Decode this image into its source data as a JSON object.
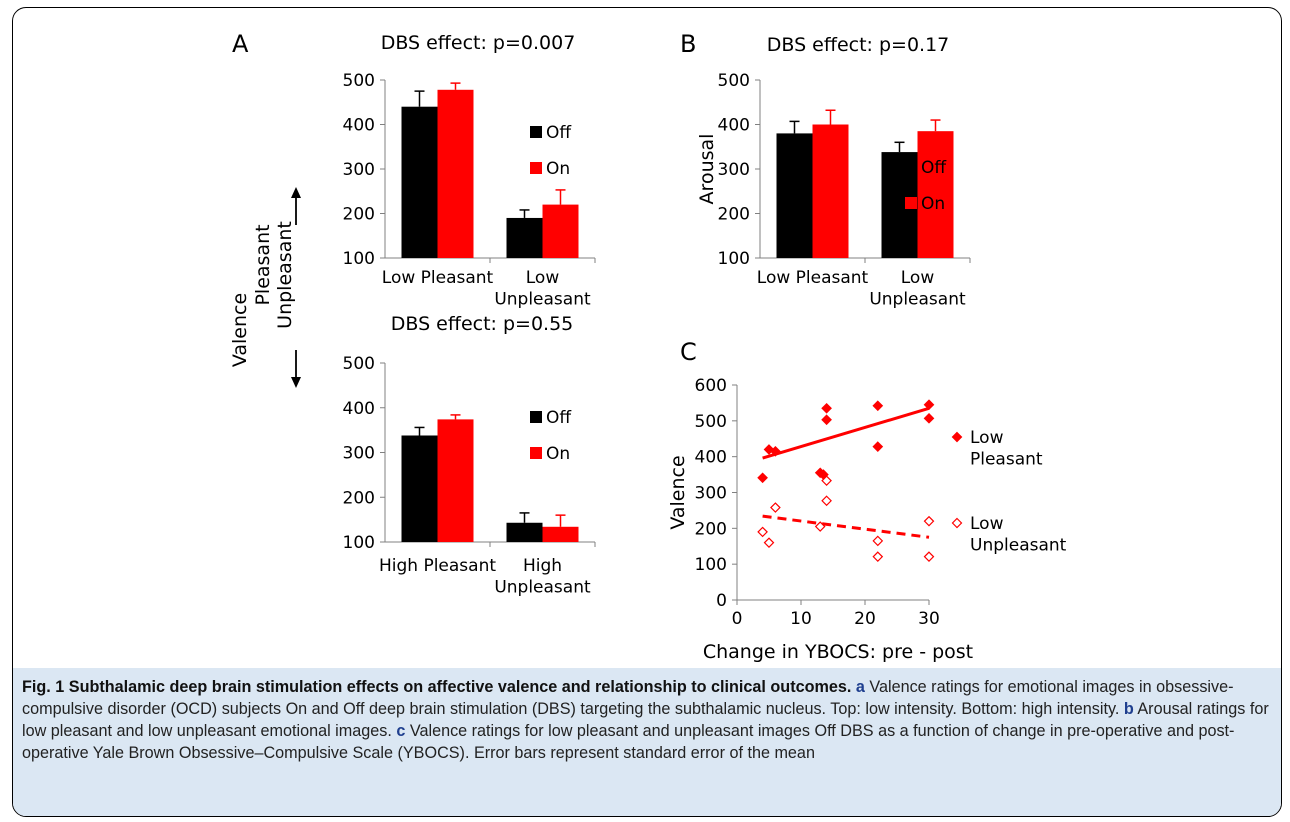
{
  "panel_letters": [
    "A",
    "B",
    "C"
  ],
  "valence_label": "Valence",
  "pleasant_label": "Pleasant",
  "unpleasant_label": "Unpleasant",
  "chart_data": [
    {
      "panel": "A-top",
      "type": "bar",
      "title": "DBS effect: p=0.007",
      "ylabel": "",
      "ylim": [
        100,
        500
      ],
      "yticks": [
        100,
        200,
        300,
        400,
        500
      ],
      "categories": [
        "Low Pleasant",
        "Low\nUnpleasant"
      ],
      "series": [
        {
          "name": "Off",
          "color": "#000000",
          "values": [
            440,
            190
          ],
          "errors": [
            35,
            18
          ]
        },
        {
          "name": "On",
          "color": "#ff0000",
          "values": [
            478,
            220
          ],
          "errors": [
            15,
            33
          ]
        }
      ]
    },
    {
      "panel": "B",
      "type": "bar",
      "title": "DBS effect: p=0.17",
      "ylabel": "Arousal",
      "ylim": [
        100,
        500
      ],
      "yticks": [
        100,
        200,
        300,
        400,
        500
      ],
      "categories": [
        "Low Pleasant",
        "Low\nUnpleasant"
      ],
      "series": [
        {
          "name": "Off",
          "color": "#000000",
          "values": [
            380,
            338
          ],
          "errors": [
            27,
            22
          ]
        },
        {
          "name": "On",
          "color": "#ff0000",
          "values": [
            400,
            385
          ],
          "errors": [
            32,
            25
          ]
        }
      ]
    },
    {
      "panel": "A-bottom",
      "type": "bar",
      "title": "DBS effect: p=0.55",
      "ylabel": "",
      "ylim": [
        100,
        500
      ],
      "yticks": [
        100,
        200,
        300,
        400,
        500
      ],
      "categories": [
        "High Pleasant",
        "High\nUnpleasant"
      ],
      "series": [
        {
          "name": "Off",
          "color": "#000000",
          "values": [
            338,
            143
          ],
          "errors": [
            18,
            22
          ]
        },
        {
          "name": "On",
          "color": "#ff0000",
          "values": [
            374,
            134
          ],
          "errors": [
            10,
            26
          ]
        }
      ]
    },
    {
      "panel": "C",
      "type": "scatter",
      "title": "",
      "xlabel": "Change in YBOCS: pre - post",
      "ylabel": "Valence",
      "xlim": [
        0,
        30
      ],
      "ylim": [
        0,
        600
      ],
      "xticks": [
        0,
        10,
        20,
        30
      ],
      "yticks": [
        0,
        100,
        200,
        300,
        400,
        500,
        600
      ],
      "series": [
        {
          "name": "Low\nPleasant",
          "color": "#ff0000",
          "marker": "filled-diamond",
          "trendline": "solid",
          "trend": [
            [
              4,
              396
            ],
            [
              30,
              535
            ]
          ],
          "points": [
            [
              4,
              341
            ],
            [
              5,
              420
            ],
            [
              6,
              415
            ],
            [
              13,
              355
            ],
            [
              13.5,
              350
            ],
            [
              14,
              535
            ],
            [
              14,
              503
            ],
            [
              22,
              542
            ],
            [
              22,
              428
            ],
            [
              30,
              545
            ],
            [
              30,
              507
            ]
          ]
        },
        {
          "name": "Low\nUnpleasant",
          "color": "#ff0000",
          "marker": "open-diamond",
          "trendline": "dashed",
          "trend": [
            [
              4,
              234
            ],
            [
              30,
              175
            ]
          ],
          "points": [
            [
              4,
              190
            ],
            [
              5,
              160
            ],
            [
              6,
              258
            ],
            [
              13,
              205
            ],
            [
              14,
              333
            ],
            [
              14,
              277
            ],
            [
              22,
              165
            ],
            [
              22,
              121
            ],
            [
              30,
              220
            ],
            [
              30,
              121
            ]
          ]
        }
      ]
    }
  ],
  "caption": {
    "label": "Fig. 1",
    "title": "Subthalamic deep brain stimulation effects on affective valence and relationship to clinical outcomes.",
    "a_letter": "a",
    "a_text": "Valence ratings for emotional images in obsessive-compulsive disorder (OCD) subjects On and Off deep brain stimulation (DBS) targeting the subthalamic nucleus. Top: low intensity. Bottom: high intensity.",
    "b_letter": "b",
    "b_text": "Arousal ratings for low pleasant and low unpleasant emotional images.",
    "c_letter": "c",
    "c_text": "Valence ratings for low pleasant and unpleasant images Off DBS as a function of change in pre-operative and post-operative Yale Brown Obsessive–Compulsive Scale (YBOCS). Error bars represent standard error of the mean"
  }
}
